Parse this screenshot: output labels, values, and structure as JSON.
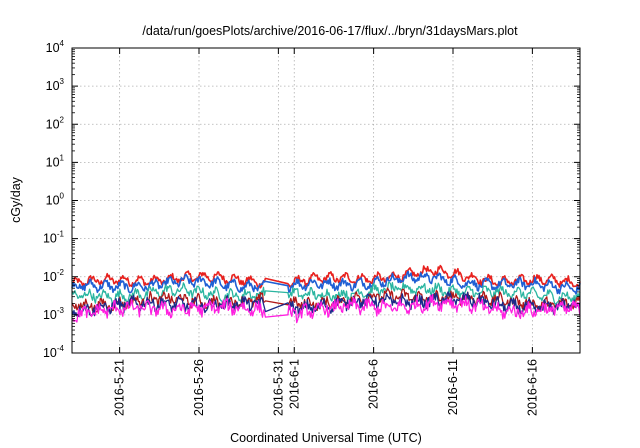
{
  "chart_data": {
    "type": "line",
    "title": "/data/run/goesPlots/archive/2016-06-17/flux/../bryn/31daysMars.plot",
    "xlabel": "Coordinated Universal Time (UTC)",
    "ylabel": "cGy/day",
    "y_scale": "log",
    "ylim": [
      0.0001,
      10000
    ],
    "y_ticks": [
      {
        "base": "10",
        "exp": "-4"
      },
      {
        "base": "10",
        "exp": "-3"
      },
      {
        "base": "10",
        "exp": "-2"
      },
      {
        "base": "10",
        "exp": "-1"
      },
      {
        "base": "10",
        "exp": "0"
      },
      {
        "base": "10",
        "exp": "1"
      },
      {
        "base": "10",
        "exp": "2"
      },
      {
        "base": "10",
        "exp": "3"
      },
      {
        "base": "10",
        "exp": "4"
      }
    ],
    "xlim": [
      "2016-05-18",
      "2016-06-19"
    ],
    "x_ticks": [
      "2016-5-21",
      "2016-5-26",
      "2016-5-31",
      "2016-6-1",
      "2016-6-6",
      "2016-6-11",
      "2016-6-16"
    ],
    "grid": true,
    "legend": "none",
    "data_gap": [
      "2016-05-30",
      "2016-05-31"
    ],
    "series": [
      {
        "color": "#e8211e",
        "level": 0.0075,
        "x": [
          "2016-05-18",
          "2016-05-25",
          "2016-06-01",
          "2016-06-08",
          "2016-06-10",
          "2016-06-14",
          "2016-06-19"
        ],
        "y": [
          0.0065,
          0.0095,
          0.0072,
          0.011,
          0.013,
          0.008,
          0.007
        ]
      },
      {
        "color": "#1f5fd4",
        "level": 0.0055,
        "x": [
          "2016-05-18",
          "2016-05-25",
          "2016-06-01",
          "2016-06-08",
          "2016-06-10",
          "2016-06-14",
          "2016-06-19"
        ],
        "y": [
          0.005,
          0.007,
          0.0055,
          0.0085,
          0.009,
          0.006,
          0.0055
        ]
      },
      {
        "color": "#2ab5a0",
        "level": 0.0033,
        "x": [
          "2016-05-18",
          "2016-05-25",
          "2016-06-01",
          "2016-06-08",
          "2016-06-10",
          "2016-06-14",
          "2016-06-19"
        ],
        "y": [
          0.003,
          0.004,
          0.0032,
          0.0045,
          0.005,
          0.0035,
          0.0032
        ]
      },
      {
        "color": "#b01818",
        "level": 0.002,
        "x": [
          "2016-05-18",
          "2016-05-25",
          "2016-06-01",
          "2016-06-08",
          "2016-06-10",
          "2016-06-14",
          "2016-06-19"
        ],
        "y": [
          0.0018,
          0.0025,
          0.002,
          0.003,
          0.0032,
          0.0022,
          0.002
        ]
      },
      {
        "color": "#1a2b8a",
        "level": 0.0016,
        "x": [
          "2016-05-18",
          "2016-05-25",
          "2016-06-01",
          "2016-06-08",
          "2016-06-10",
          "2016-06-14",
          "2016-06-19"
        ],
        "y": [
          0.0015,
          0.002,
          0.0016,
          0.0024,
          0.0026,
          0.0018,
          0.0016
        ]
      },
      {
        "color": "#ff1fe0",
        "level": 0.0012,
        "x": [
          "2016-05-18",
          "2016-05-25",
          "2016-06-01",
          "2016-06-08",
          "2016-06-10",
          "2016-06-14",
          "2016-06-19"
        ],
        "y": [
          0.0011,
          0.0016,
          0.0012,
          0.0018,
          0.002,
          0.0014,
          0.0013
        ]
      }
    ]
  }
}
